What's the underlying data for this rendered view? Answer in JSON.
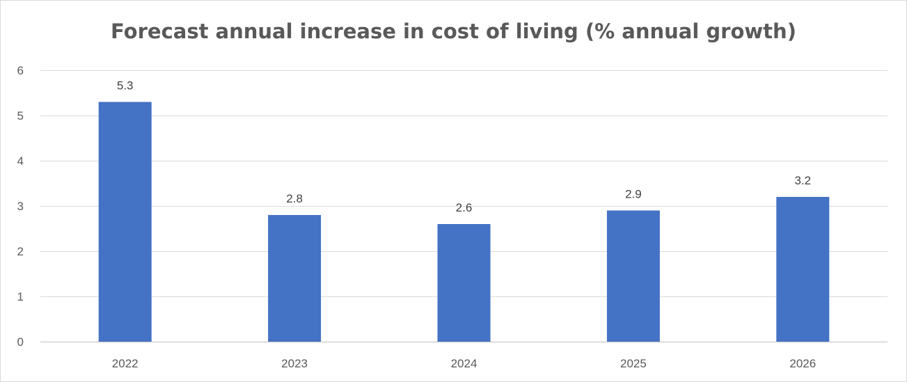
{
  "chart_data": {
    "type": "bar",
    "title": "Forecast annual increase in cost of living (% annual growth)",
    "xlabel": "",
    "ylabel": "",
    "categories": [
      "2022",
      "2023",
      "2024",
      "2025",
      "2026"
    ],
    "series": [
      {
        "values": [
          5.3,
          2.8,
          2.6,
          2.9,
          3.2
        ]
      }
    ],
    "data_labels": [
      "5.3",
      "2.8",
      "2.6",
      "2.9",
      "3.2"
    ],
    "ylim": [
      0,
      6
    ],
    "yticks": [
      0,
      1,
      2,
      3,
      4,
      5,
      6
    ],
    "ytick_labels": [
      "0",
      "1",
      "2",
      "3",
      "4",
      "5",
      "6"
    ],
    "grid": true,
    "legend": "none",
    "colors": {
      "bar": "#4472C4",
      "gridline": "#d9d9d9",
      "axis": "#bfbfbf",
      "text": "#595959"
    }
  }
}
